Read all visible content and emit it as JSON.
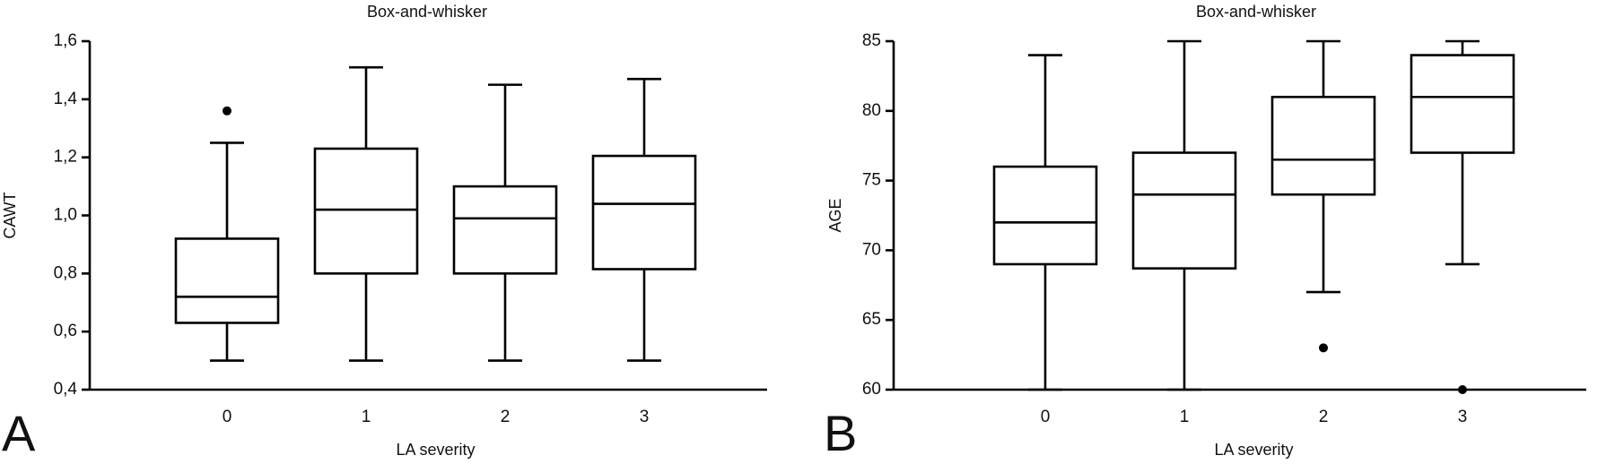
{
  "chart_data": [
    {
      "type": "box",
      "panel_label": "A",
      "title": "Box-and-whisker",
      "x_label": "LA severity",
      "y_label": "CAWT",
      "categories": [
        "0",
        "1",
        "2",
        "3"
      ],
      "min": [
        0.5,
        0.5,
        0.5,
        0.5
      ],
      "q1": [
        0.63,
        0.8,
        0.8,
        0.815
      ],
      "median": [
        0.72,
        1.02,
        0.99,
        1.04
      ],
      "q3": [
        0.92,
        1.23,
        1.1,
        1.205
      ],
      "max": [
        1.25,
        1.51,
        1.45,
        1.47
      ],
      "outliers": [
        [
          1.36
        ],
        [],
        [],
        []
      ],
      "color": "#000000",
      "ylim": [
        0.4,
        1.6
      ],
      "yticks": [
        {
          "value": 0.4,
          "label": "0,4"
        },
        {
          "value": 0.6,
          "label": "0,6"
        },
        {
          "value": 0.8,
          "label": "0,8"
        },
        {
          "value": 1.0,
          "label": "1,0"
        },
        {
          "value": 1.2,
          "label": "1,2"
        },
        {
          "value": 1.4,
          "label": "1,4"
        },
        {
          "value": 1.6,
          "label": "1,6"
        }
      ]
    },
    {
      "type": "box",
      "panel_label": "B",
      "title": "Box-and-whisker",
      "x_label": "LA severity",
      "y_label": "AGE",
      "categories": [
        "0",
        "1",
        "2",
        "3"
      ],
      "min": [
        60,
        60,
        67,
        69
      ],
      "q1": [
        69,
        68.7,
        74,
        77
      ],
      "median": [
        72,
        74,
        76.5,
        81
      ],
      "q3": [
        76,
        77,
        81,
        84
      ],
      "max": [
        84,
        85,
        85,
        85
      ],
      "outliers": [
        [],
        [],
        [
          63
        ],
        [
          60
        ]
      ],
      "color": "#000000",
      "ylim": [
        60,
        85
      ],
      "yticks": [
        60,
        65,
        70,
        75,
        80,
        85
      ]
    }
  ]
}
